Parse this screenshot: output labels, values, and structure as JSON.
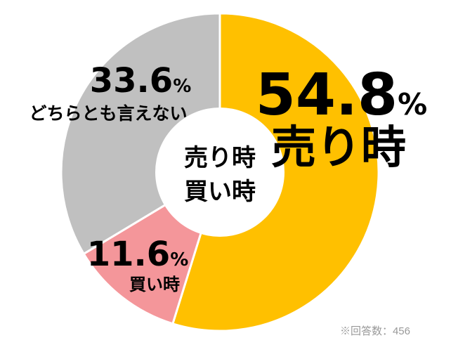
{
  "chart_data": {
    "type": "pie",
    "donut": true,
    "center_label": [
      "売り時",
      "買い時"
    ],
    "slices": [
      {
        "label": "売り時",
        "value": 54.8,
        "display": "54.8",
        "color": "#FFC000"
      },
      {
        "label": "買い時",
        "value": 11.6,
        "display": "11.6",
        "color": "#F4969A"
      },
      {
        "label": "どちらとも言えない",
        "value": 33.6,
        "display": "33.6",
        "color": "#C0C0C0"
      }
    ],
    "unit": "%",
    "start": "12 o'clock, clockwise"
  },
  "note": "※回答数：456"
}
